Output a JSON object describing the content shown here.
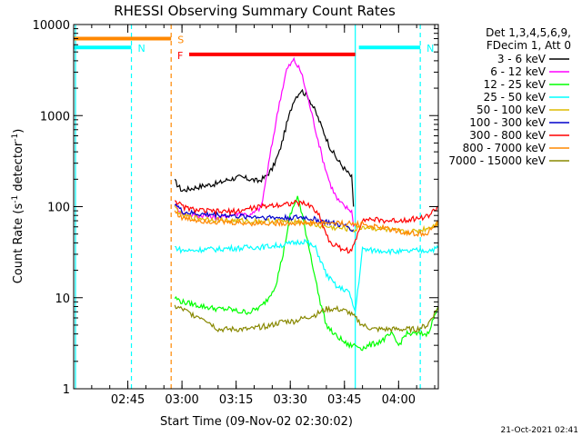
{
  "chart_data": {
    "type": "line",
    "title": "RHESSI Observing Summary Count Rates",
    "xlabel": "Start Time (09-Nov-02 02:30:02)",
    "ylabel_main": "Count Rate (s",
    "ylabel_sup1": "-1",
    "ylabel_mid": " detector",
    "ylabel_sup2": "-1",
    "ylabel_end": ")",
    "x_unit": "minutes after 02:30",
    "xlim": [
      0,
      101
    ],
    "ylim": [
      1,
      10000
    ],
    "yscale": "log",
    "x_ticks": [
      {
        "label": "02:45",
        "value": 15
      },
      {
        "label": "03:00",
        "value": 30
      },
      {
        "label": "03:15",
        "value": 45
      },
      {
        "label": "03:30",
        "value": 60
      },
      {
        "label": "03:45",
        "value": 75
      },
      {
        "label": "04:00",
        "value": 90
      }
    ],
    "y_ticks": [
      {
        "label": "1",
        "value": 1
      },
      {
        "label": "10",
        "value": 10
      },
      {
        "label": "100",
        "value": 100
      },
      {
        "label": "1000",
        "value": 1000
      },
      {
        "label": "10000",
        "value": 10000
      }
    ],
    "legend_header": [
      "Det 1,3,4,5,6,9,",
      "FDecim 1, Att 0"
    ],
    "legend_position": "right",
    "series": [
      {
        "name": "3 - 6 keV",
        "color": "#000000",
        "x": [
          28,
          30,
          33,
          36,
          40,
          43,
          46,
          49,
          51,
          53,
          55,
          57,
          59,
          61,
          63,
          65,
          67,
          69,
          71,
          73,
          75,
          77,
          77.5
        ],
        "y": [
          190,
          150,
          160,
          170,
          180,
          200,
          210,
          200,
          190,
          210,
          260,
          400,
          800,
          1500,
          1900,
          1600,
          1100,
          700,
          450,
          330,
          260,
          210,
          100
        ]
      },
      {
        "name": "6 - 12 keV",
        "color": "#ff00ff",
        "x": [
          28,
          30,
          33,
          36,
          40,
          43,
          46,
          49,
          52,
          55,
          57,
          59,
          61,
          63,
          65,
          67,
          69,
          71,
          73,
          75,
          77,
          77.5
        ],
        "y": [
          105,
          85,
          80,
          80,
          75,
          80,
          85,
          80,
          100,
          500,
          1400,
          3200,
          4100,
          3000,
          1500,
          700,
          330,
          180,
          120,
          100,
          90,
          60
        ]
      },
      {
        "name": "12 - 25 keV",
        "color": "#00ff00",
        "x": [
          28,
          30,
          33,
          36,
          40,
          43,
          46,
          49,
          52,
          54,
          56,
          58,
          60,
          62,
          64,
          66,
          68,
          70,
          72,
          74,
          76,
          78,
          80,
          82,
          84,
          86,
          88,
          90,
          92,
          95,
          98,
          101
        ],
        "y": [
          10,
          9,
          8.5,
          8,
          7.5,
          7.5,
          7,
          7,
          8,
          10,
          14,
          30,
          80,
          130,
          60,
          25,
          10,
          5,
          4,
          3.5,
          3,
          3,
          2.8,
          3,
          3.2,
          3.5,
          4,
          3,
          4,
          4,
          4,
          8
        ]
      },
      {
        "name": "25 - 50 keV",
        "color": "#00ffff",
        "x": [
          28,
          30,
          33,
          36,
          40,
          43,
          46,
          49,
          52,
          55,
          58,
          61,
          64,
          67,
          70,
          73,
          76,
          78,
          80,
          83,
          86,
          89,
          92,
          95,
          98,
          101
        ],
        "y": [
          36,
          33,
          33,
          34,
          34,
          35,
          35,
          36,
          36,
          37,
          38,
          40,
          42,
          35,
          18,
          13,
          12,
          7,
          34,
          33,
          33,
          32,
          32,
          33,
          33,
          35
        ]
      },
      {
        "name": "50 - 100 keV",
        "color": "#ddbb00",
        "x": [
          28,
          30,
          33,
          36,
          40,
          43,
          46,
          49,
          52,
          55,
          58,
          61,
          64,
          67,
          70,
          73,
          76,
          78,
          80,
          83,
          86,
          89,
          92,
          95,
          98,
          101
        ],
        "y": [
          100,
          80,
          76,
          74,
          72,
          70,
          70,
          69,
          69,
          69,
          69,
          70,
          68,
          62,
          60,
          58,
          57,
          55,
          60,
          58,
          56,
          54,
          52,
          54,
          58,
          66
        ]
      },
      {
        "name": "100 - 300 keV",
        "color": "#0000cc",
        "x": [
          28,
          30,
          33,
          36,
          40,
          43,
          46,
          49,
          52,
          55,
          58,
          61,
          64,
          67,
          70,
          73,
          76,
          77.5
        ],
        "y": [
          110,
          88,
          84,
          82,
          82,
          80,
          78,
          78,
          77,
          76,
          75,
          76,
          76,
          72,
          68,
          64,
          60,
          56
        ]
      },
      {
        "name": "300 - 800 keV",
        "color": "#ff0000",
        "x": [
          28,
          30,
          33,
          36,
          40,
          43,
          46,
          49,
          52,
          55,
          58,
          61,
          64,
          66,
          68,
          71,
          74,
          77,
          80,
          83,
          86,
          89,
          92,
          95,
          98,
          101
        ],
        "y": [
          120,
          100,
          93,
          90,
          88,
          88,
          90,
          96,
          100,
          104,
          106,
          110,
          108,
          100,
          80,
          40,
          35,
          32,
          74,
          72,
          70,
          70,
          72,
          74,
          78,
          100
        ]
      },
      {
        "name": "800 - 7000 keV",
        "color": "#ff8800",
        "x": [
          28,
          30,
          33,
          36,
          40,
          43,
          46,
          49,
          52,
          55,
          58,
          61,
          64,
          66,
          68,
          70,
          73,
          76,
          78,
          80,
          83,
          86,
          89,
          92,
          95,
          98,
          101
        ],
        "y": [
          90,
          75,
          72,
          70,
          68,
          67,
          66,
          66,
          66,
          66,
          66,
          66,
          66,
          66,
          66,
          66,
          66,
          65,
          64,
          65,
          60,
          58,
          55,
          52,
          50,
          52,
          66
        ]
      },
      {
        "name": "7000 - 15000 keV",
        "color": "#888800",
        "x": [
          28,
          30,
          33,
          36,
          40,
          43,
          46,
          49,
          52,
          55,
          58,
          61,
          64,
          67,
          70,
          73,
          76,
          78,
          80,
          83,
          86,
          89,
          92,
          95,
          98,
          101
        ],
        "y": [
          8,
          7.5,
          6.5,
          6,
          4.5,
          4.5,
          4.5,
          4.5,
          4.8,
          5,
          5.5,
          5.5,
          6,
          6.5,
          7.5,
          7.5,
          7,
          6,
          5,
          4.5,
          4.5,
          4.5,
          4.5,
          4.5,
          5,
          8
        ]
      }
    ],
    "flags": [
      {
        "label": "S",
        "color": "#ff8800",
        "x0": 0,
        "x1": 27,
        "y": 7000
      },
      {
        "label": "N",
        "color": "#00ffff",
        "x0": 0,
        "x1": 16,
        "y": 5600
      },
      {
        "label": "N",
        "color": "#00ffff",
        "x0": 79,
        "x1": 96,
        "y": 5600
      },
      {
        "label": "F",
        "color": "#ff0000",
        "x0": 32,
        "x1": 78,
        "y": 4700
      }
    ],
    "vlines": [
      {
        "x": 0.5,
        "color": "#00ffff",
        "style": "solid"
      },
      {
        "x": 16,
        "color": "#00ffff",
        "style": "dashed"
      },
      {
        "x": 27,
        "color": "#ff8800",
        "style": "dashed"
      },
      {
        "x": 78,
        "color": "#00ffff",
        "style": "solid"
      },
      {
        "x": 96,
        "color": "#00ffff",
        "style": "dashed"
      }
    ],
    "grid": false
  },
  "footer_date": "21-Oct-2021 02:41"
}
